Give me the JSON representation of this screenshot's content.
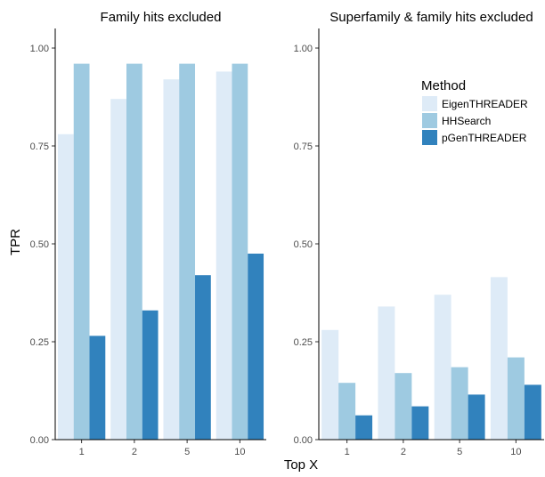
{
  "chart_data": {
    "type": "bar",
    "xlabel": "Top X",
    "ylabel": "TPR",
    "ylim": [
      0,
      1.05
    ],
    "yticks": [
      "0.00",
      "0.25",
      "0.50",
      "0.75",
      "1.00"
    ],
    "yticks_values": [
      0,
      0.25,
      0.5,
      0.75,
      1.0
    ],
    "categories": [
      "1",
      "2",
      "5",
      "10"
    ],
    "grid": false,
    "legend": {
      "title": "Method",
      "placement": "top-right",
      "entries": [
        "EigenTHREADER",
        "HHSearch",
        "pGenTHREADER"
      ]
    },
    "colors": {
      "EigenTHREADER": "#deebf7",
      "HHSearch": "#9ecae1",
      "pGenTHREADER": "#3182bd"
    },
    "panels": [
      {
        "title": "Family hits excluded",
        "series": [
          {
            "name": "EigenTHREADER",
            "values": [
              0.78,
              0.87,
              0.92,
              0.94
            ]
          },
          {
            "name": "HHSearch",
            "values": [
              0.96,
              0.96,
              0.96,
              0.96
            ]
          },
          {
            "name": "pGenTHREADER",
            "values": [
              0.265,
              0.33,
              0.42,
              0.475
            ]
          }
        ]
      },
      {
        "title": "Superfamily & family hits excluded",
        "series": [
          {
            "name": "EigenTHREADER",
            "values": [
              0.28,
              0.34,
              0.37,
              0.415
            ]
          },
          {
            "name": "HHSearch",
            "values": [
              0.145,
              0.17,
              0.185,
              0.21
            ]
          },
          {
            "name": "pGenTHREADER",
            "values": [
              0.062,
              0.085,
              0.115,
              0.14
            ]
          }
        ]
      }
    ]
  }
}
